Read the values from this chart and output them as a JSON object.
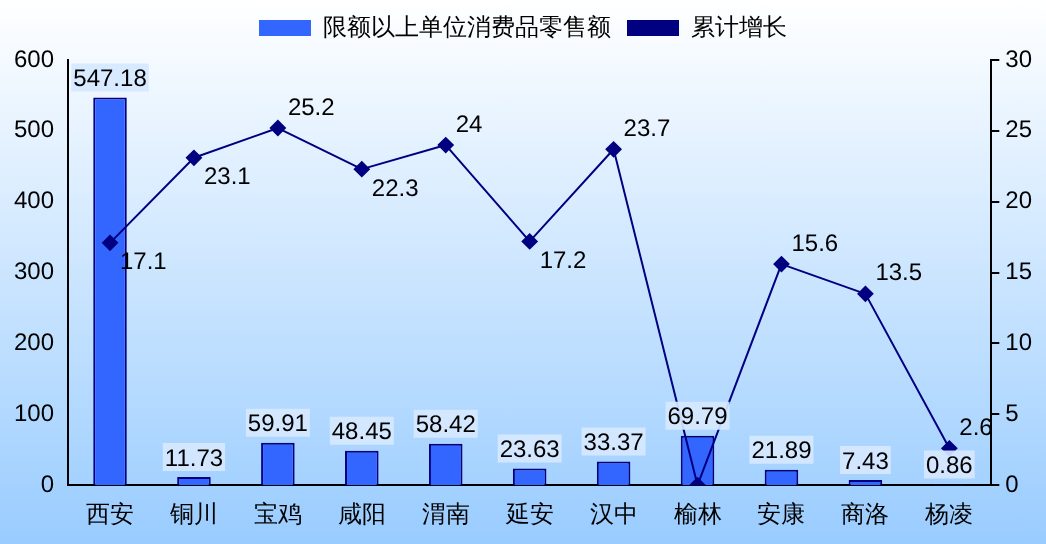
{
  "chart_data": {
    "type": "bar",
    "categories": [
      "西安",
      "铜川",
      "宝鸡",
      "咸阳",
      "渭南",
      "延安",
      "汉中",
      "榆林",
      "安康",
      "商洛",
      "杨凌"
    ],
    "series": [
      {
        "name": "限额以上单位消费品零售额",
        "color": "#3366ff",
        "values": [
          547.18,
          11.73,
          59.91,
          48.45,
          58.42,
          23.63,
          33.37,
          69.79,
          21.89,
          7.43,
          0.86
        ],
        "value_labels": [
          "547.18",
          "11.73",
          "59.91",
          "48.45",
          "58.42",
          "23.63",
          "33.37",
          "69.79",
          "21.89",
          "7.43",
          "0.86"
        ]
      },
      {
        "name": "累计增长",
        "type": "line",
        "axis": "y2",
        "color": "#000080",
        "marker": "diamond",
        "values": [
          17.1,
          23.1,
          25.2,
          22.3,
          24,
          17.2,
          23.7,
          0,
          15.6,
          13.5,
          2.6
        ],
        "value_labels": [
          "17.1",
          "23.1",
          "25.2",
          "22.3",
          "24",
          "17.2",
          "23.7",
          null,
          "15.6",
          "13.5",
          "2.6"
        ]
      }
    ],
    "ylim": [
      0,
      600
    ],
    "yticks": [
      0,
      100,
      200,
      300,
      400,
      500,
      600
    ],
    "y2lim": [
      0,
      30
    ],
    "y2ticks": [
      0,
      5,
      10,
      15,
      20,
      25,
      30
    ],
    "grid": false,
    "legend": "top"
  }
}
